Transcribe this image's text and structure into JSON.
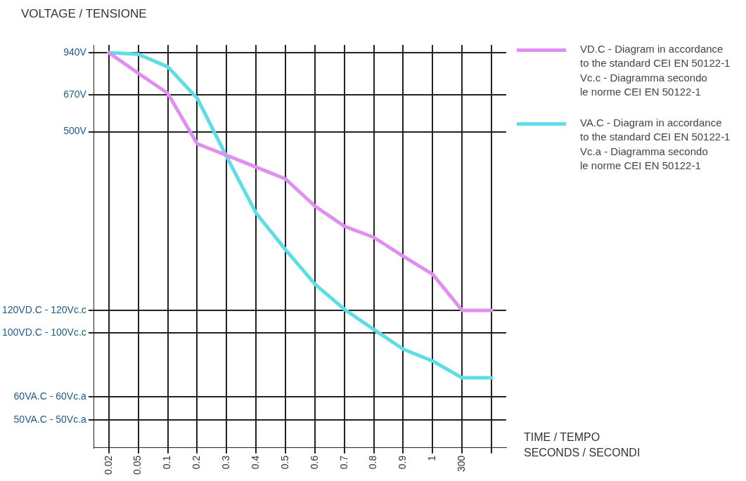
{
  "chart_data": {
    "type": "line",
    "ylabel": "VOLTAGE / TENSIONE",
    "xlabel": "TIME / TEMPO\nSECONDS / SECONDI",
    "categories": [
      "0.02",
      "0.05",
      "0.1",
      "0.2",
      "0.3",
      "0.4",
      "0.5",
      "0.6",
      "0.7",
      "0.8",
      "0.9",
      "1",
      "300",
      null
    ],
    "series": [
      {
        "name": "VD.C - Diagram in accordance\nto the standard CEI EN 50122-1\nVc.c - Diagramma secondo\nle norme CEI EN 50122-1",
        "color": "#e08ef0",
        "values": [
          940,
          798,
          680,
          454,
          414,
          377,
          343,
          276,
          235,
          215,
          185,
          160,
          120,
          120
        ]
      },
      {
        "name": "VA.C - Diagram in accordance\nto the standard CEI EN 50122-1\nVc.a - Diagramma secondo\nle norme CEI EN 50122-1",
        "color": "#5ddde6",
        "values": [
          940,
          928,
          840,
          654,
          410,
          261,
          195,
          148,
          121,
          103,
          88,
          80,
          70,
          70
        ]
      }
    ],
    "log": "y",
    "ylim": [
      40,
      1000
    ],
    "yticks": [
      {
        "value": 50,
        "label": "50VA.C - 50Vc.a"
      },
      {
        "value": 60,
        "label": "60VA.C - 60Vc.a"
      },
      {
        "value": 100,
        "label": "100VD.C - 100Vc.c"
      },
      {
        "value": 120,
        "label": "120VD.C - 120Vc.c"
      },
      {
        "value": 500,
        "label": "500V"
      },
      {
        "value": 670,
        "label": "670V"
      },
      {
        "value": 940,
        "label": "940V"
      }
    ],
    "grid": true,
    "legend": "top right",
    "marker": "none",
    "line_style": "solid"
  }
}
